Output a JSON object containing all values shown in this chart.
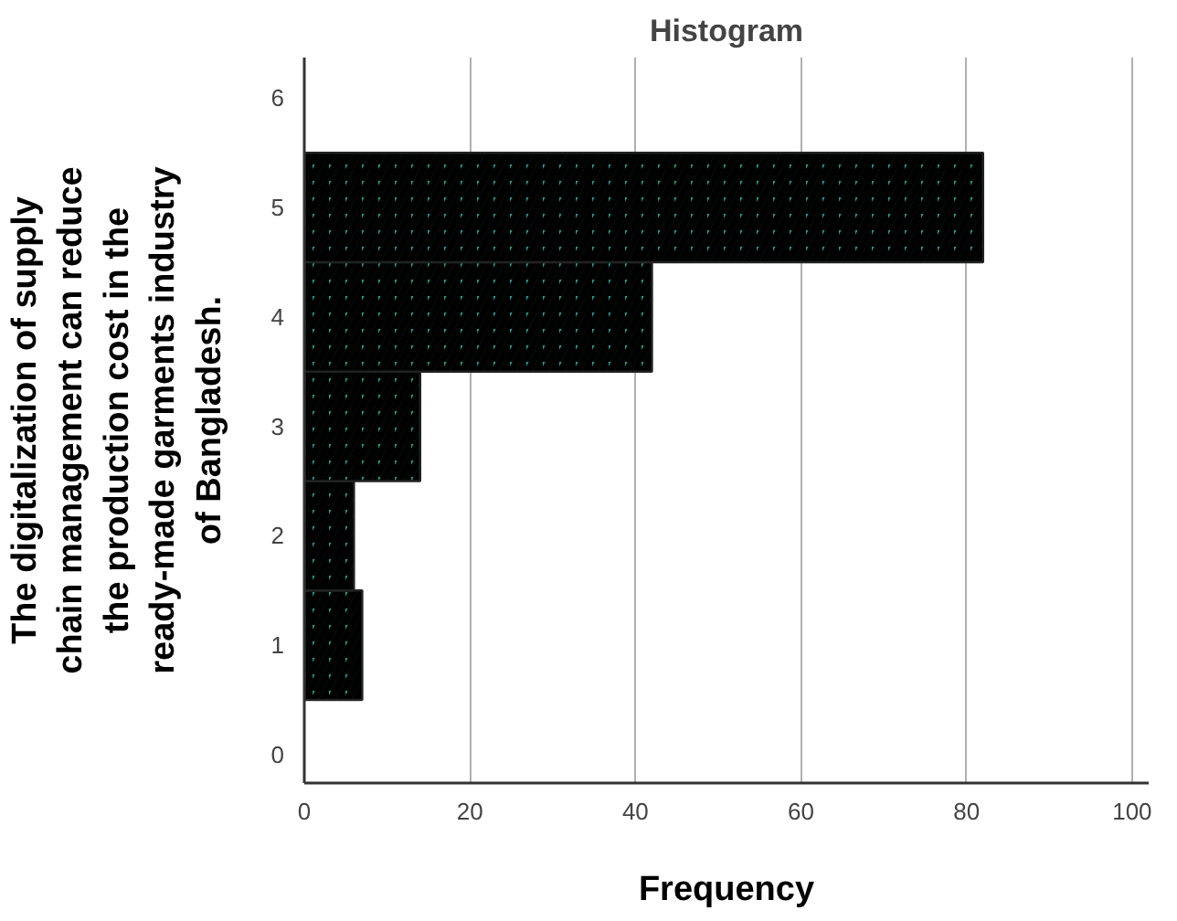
{
  "chart_data": {
    "type": "histogram",
    "orientation": "horizontal",
    "title": "Histogram",
    "xlabel": "Frequency",
    "ylabel": "The digitalization of supply chain management can reduce the production cost in the ready-made garments industry of Bangladesh.",
    "bins": [
      0.5,
      1.5,
      2.5,
      3.5,
      4.5,
      5.5
    ],
    "values": [
      7,
      6,
      14,
      42,
      82
    ],
    "color": "#1fa393",
    "xlim": [
      0,
      102
    ],
    "xticks": [
      0,
      20,
      40,
      60,
      80,
      100
    ],
    "ylim": [
      -0.26,
      6.37
    ],
    "yticks": [
      0,
      1,
      2,
      3,
      4,
      5,
      6
    ],
    "grid": "x"
  }
}
